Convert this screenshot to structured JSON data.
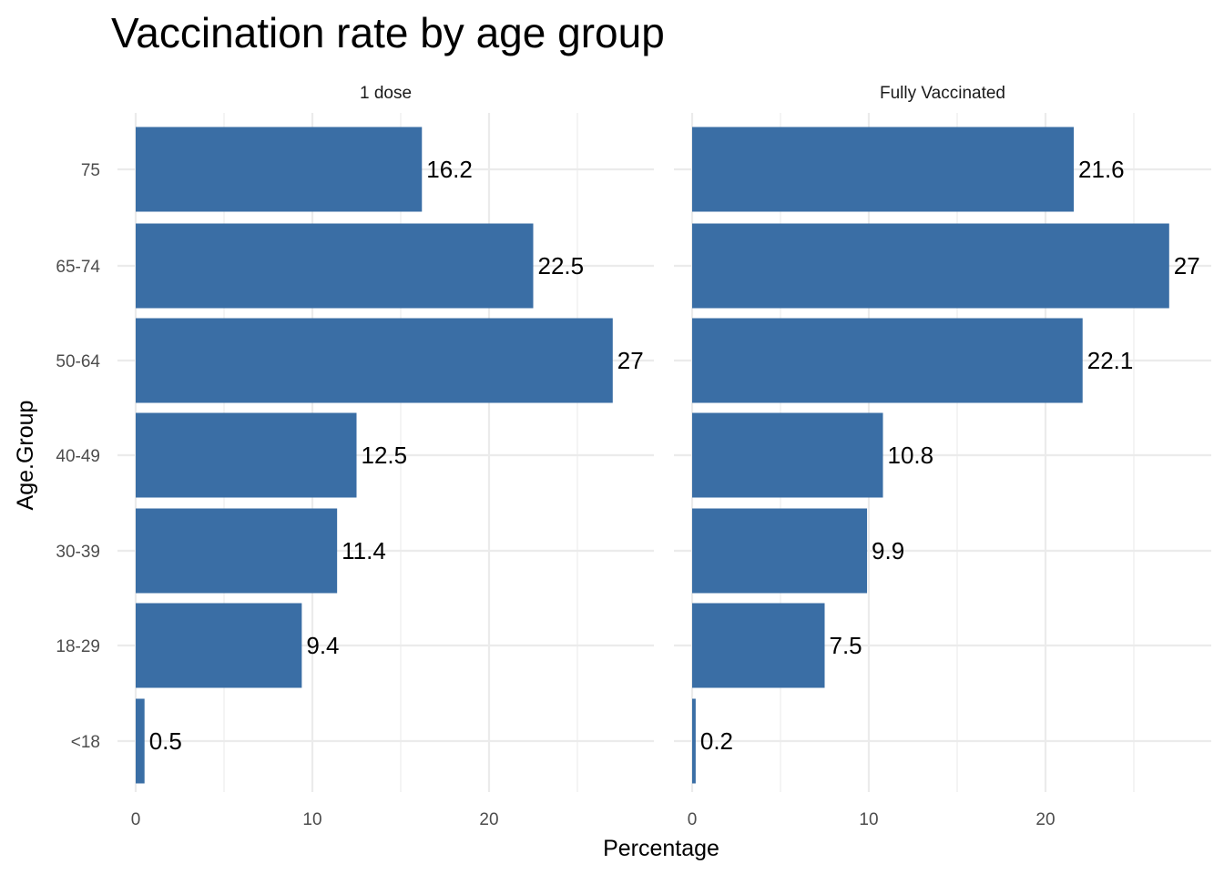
{
  "chart_data": {
    "type": "bar",
    "orientation": "horizontal",
    "title": "Vaccination rate by age group",
    "xlabel": "Percentage",
    "ylabel": "Age.Group",
    "categories": [
      "<18",
      "18-29",
      "30-39",
      "40-49",
      "50-64",
      "65-74",
      "75"
    ],
    "xlim": [
      0,
      28
    ],
    "x_ticks": [
      0,
      10,
      20
    ],
    "grid": true,
    "bar_color": "#3A6EA5",
    "panels": [
      {
        "name": "1 dose",
        "values": [
          0.5,
          9.4,
          11.4,
          12.5,
          27,
          22.5,
          16.2
        ],
        "labels": [
          "0.5",
          "9.4",
          "11.4",
          "12.5",
          "27",
          "22.5",
          "16.2"
        ]
      },
      {
        "name": "Fully Vaccinated",
        "values": [
          0.2,
          7.5,
          9.9,
          10.8,
          22.1,
          27,
          21.6
        ],
        "labels": [
          "0.2",
          "7.5",
          "9.9",
          "10.8",
          "22.1",
          "27",
          "21.6"
        ]
      }
    ]
  }
}
